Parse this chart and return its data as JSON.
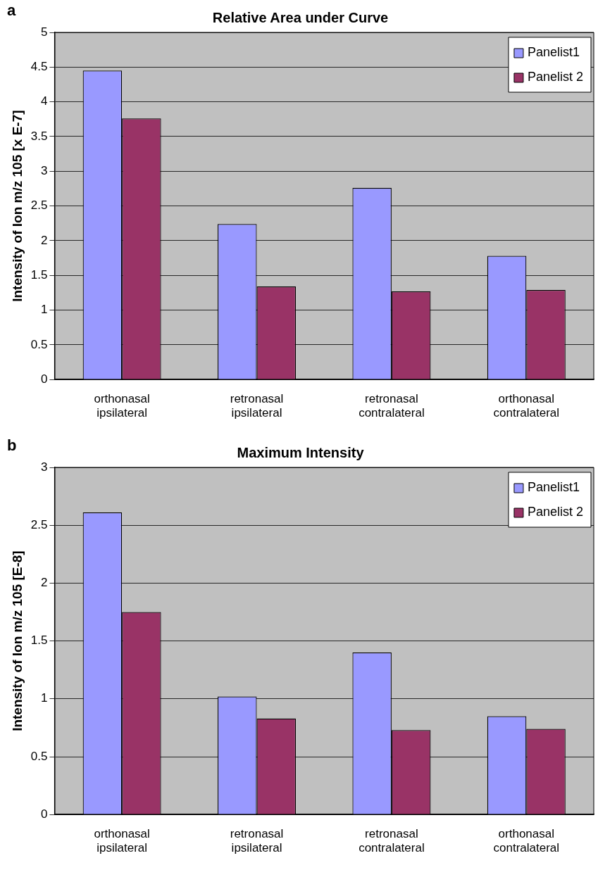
{
  "chart_data": [
    {
      "type": "bar",
      "title": "Relative Area under Curve",
      "ylabel": "Intensity of Ion m/z 105 [x E-7]",
      "annotations": [
        "a"
      ],
      "categories": [
        "orthonasal ipsilateral",
        "retronasal ipsilateral",
        "retronasal contralateral",
        "orthonasal contralateral"
      ],
      "series": [
        {
          "name": "Panelist1",
          "color": "#9999ff",
          "values": [
            4.45,
            2.24,
            2.76,
            1.78
          ]
        },
        {
          "name": "Panelist 2",
          "color": "#993366",
          "values": [
            3.76,
            1.34,
            1.27,
            1.29
          ]
        }
      ],
      "ylim": [
        0,
        5
      ],
      "yticks": [
        0,
        0.5,
        1,
        1.5,
        2,
        2.5,
        3,
        3.5,
        4,
        4.5,
        5
      ],
      "grid": "y",
      "legend": "top right"
    },
    {
      "type": "bar",
      "title": "Maximum Intensity",
      "ylabel": "Intensity of Ion m/z 105 [E-8]",
      "annotations": [
        "b"
      ],
      "categories": [
        "orthonasal ipsilateral",
        "retronasal ipsilateral",
        "retronasal contralateral",
        "orthonasal contralateral"
      ],
      "series": [
        {
          "name": "Panelist1",
          "color": "#9999ff",
          "values": [
            2.61,
            1.02,
            1.4,
            0.85
          ]
        },
        {
          "name": "Panelist 2",
          "color": "#993366",
          "values": [
            1.75,
            0.83,
            0.73,
            0.74
          ]
        }
      ],
      "ylim": [
        0,
        3
      ],
      "yticks": [
        0,
        0.5,
        1,
        1.5,
        2,
        2.5,
        3
      ],
      "grid": "y",
      "legend": "top right"
    }
  ]
}
